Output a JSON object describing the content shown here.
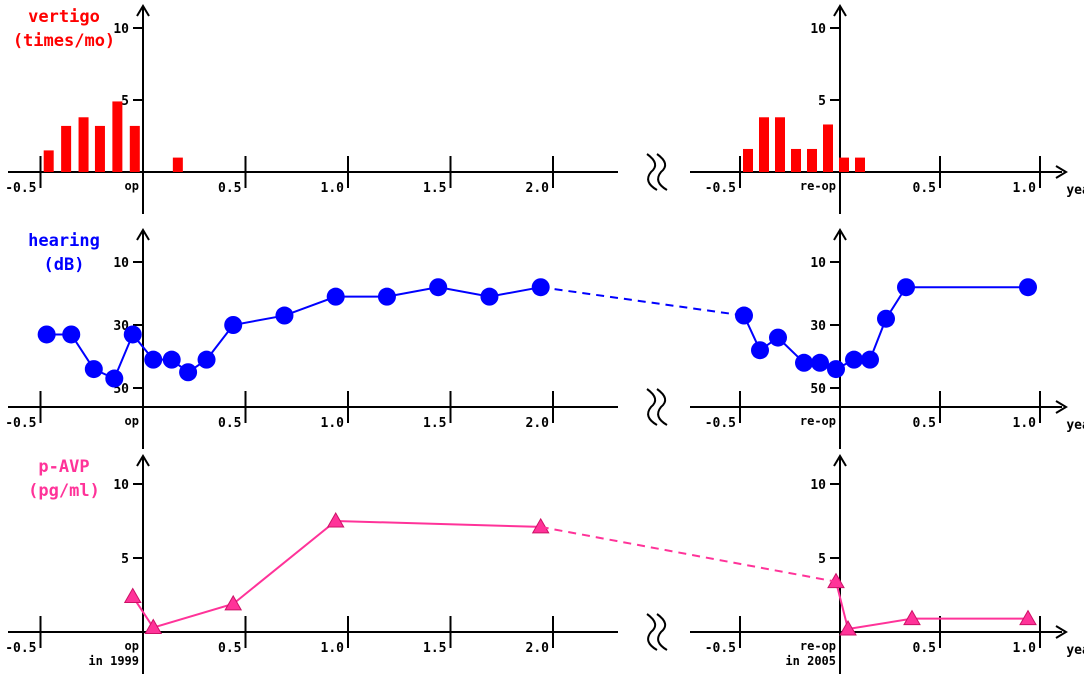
{
  "chart_data": [
    {
      "type": "bar",
      "title_lines": [
        "vertigo",
        "(times/mo)"
      ],
      "title_color": "#ff0000",
      "color": "#ff0000",
      "ylim": [
        0,
        12
      ],
      "y_ticks": [
        "10",
        "5"
      ],
      "y_tick_values": [
        10,
        5
      ],
      "break_symbol": "//",
      "segments": [
        {
          "x_range": [
            -0.5,
            2.0
          ],
          "x_ticks": [
            "-0.5",
            "0.5",
            "1.0",
            "1.5",
            "2.0"
          ],
          "x_tick_values": [
            -0.5,
            0.5,
            1.0,
            1.5,
            2.0
          ],
          "origin_label": [
            "op"
          ],
          "x": [
            -0.46,
            -0.375,
            -0.29,
            -0.21,
            -0.125,
            -0.04,
            0.17
          ],
          "values": [
            1.5,
            3.2,
            3.8,
            3.2,
            4.9,
            3.2,
            1.0
          ]
        },
        {
          "x_range": [
            -0.5,
            1.0
          ],
          "x_ticks": [
            "-0.5",
            "0.5",
            "1.0"
          ],
          "x_tick_values": [
            -0.5,
            0.5,
            1.0
          ],
          "origin_label": [
            "re-op"
          ],
          "x_unit": "year",
          "x": [
            -0.46,
            -0.38,
            -0.3,
            -0.22,
            -0.14,
            -0.06,
            0.02,
            0.1
          ],
          "values": [
            1.6,
            3.8,
            3.8,
            1.6,
            1.6,
            3.3,
            1.0,
            1.0
          ]
        }
      ]
    },
    {
      "type": "line",
      "title_lines": [
        "hearing",
        "(dB)"
      ],
      "title_color": "#0000ff",
      "color": "#0000ff",
      "marker": "circle",
      "ylim": [
        5,
        60
      ],
      "y_inverted": true,
      "y_ticks": [
        "10",
        "30",
        "50"
      ],
      "y_tick_values": [
        10,
        30,
        50
      ],
      "bridge_dashed": true,
      "break_symbol": "//",
      "segments": [
        {
          "x_range": [
            -0.5,
            2.0
          ],
          "x_ticks": [
            "-0.5",
            "0.5",
            "1.0",
            "1.5",
            "2.0"
          ],
          "x_tick_values": [
            -0.5,
            0.5,
            1.0,
            1.5,
            2.0
          ],
          "origin_label": [
            "op"
          ],
          "x": [
            -0.47,
            -0.35,
            -0.24,
            -0.14,
            -0.05,
            0.05,
            0.14,
            0.22,
            0.31,
            0.44,
            0.69,
            0.94,
            1.19,
            1.44,
            1.69,
            1.94
          ],
          "values": [
            33,
            33,
            44,
            47,
            33,
            41,
            41,
            45,
            41,
            30,
            27,
            21,
            21,
            18,
            21,
            18
          ]
        },
        {
          "x_range": [
            -0.5,
            1.0
          ],
          "x_ticks": [
            "-0.5",
            "0.5",
            "1.0"
          ],
          "x_tick_values": [
            -0.5,
            0.5,
            1.0
          ],
          "origin_label": [
            "re-op"
          ],
          "x_unit": "year",
          "x": [
            -0.48,
            -0.4,
            -0.31,
            -0.18,
            -0.1,
            -0.02,
            0.07,
            0.15,
            0.23,
            0.33,
            0.94
          ],
          "values": [
            27,
            38,
            34,
            42,
            42,
            44,
            41,
            41,
            28,
            18,
            18
          ]
        }
      ]
    },
    {
      "type": "line",
      "title_lines": [
        "p-AVP",
        "(pg/ml)"
      ],
      "title_color": "#ff3399",
      "color": "#ff3399",
      "marker": "triangle",
      "ylim": [
        0,
        12
      ],
      "y_ticks": [
        "10",
        "5"
      ],
      "y_tick_values": [
        10,
        5
      ],
      "bridge_dashed": true,
      "break_symbol": "//",
      "segments": [
        {
          "x_range": [
            -0.5,
            2.0
          ],
          "x_ticks": [
            "-0.5",
            "0.5",
            "1.0",
            "1.5",
            "2.0"
          ],
          "x_tick_values": [
            -0.5,
            0.5,
            1.0,
            1.5,
            2.0
          ],
          "origin_label": [
            "op",
            "in 1999"
          ],
          "x": [
            -0.05,
            0.05,
            0.44,
            0.94,
            1.94
          ],
          "values": [
            2.4,
            0.3,
            1.9,
            7.5,
            7.1
          ]
        },
        {
          "x_range": [
            -0.5,
            1.0
          ],
          "x_ticks": [
            "-0.5",
            "0.5",
            "1.0"
          ],
          "x_tick_values": [
            -0.5,
            0.5,
            1.0
          ],
          "origin_label": [
            "re-op",
            "in 2005"
          ],
          "x_unit": "year",
          "x": [
            -0.02,
            0.04,
            0.36,
            0.94
          ],
          "values": [
            3.4,
            0.2,
            0.9,
            0.9
          ]
        }
      ]
    }
  ]
}
